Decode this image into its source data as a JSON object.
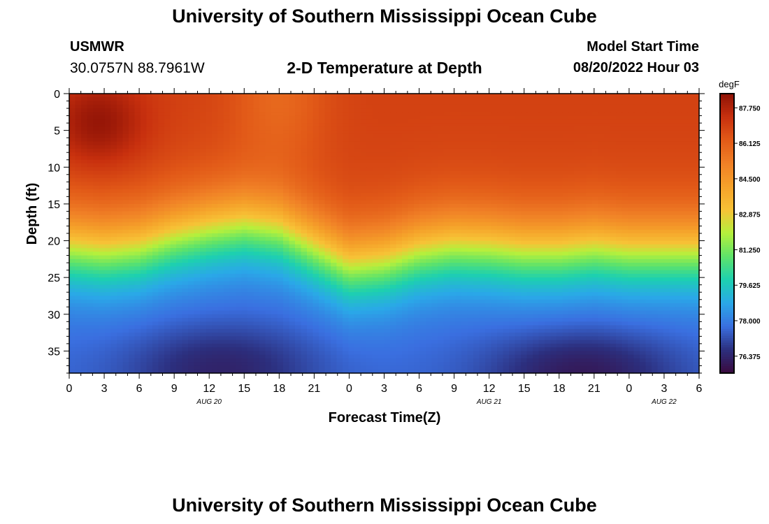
{
  "header": {
    "title": "University of Southern Mississippi Ocean Cube",
    "station": "USMWR",
    "coordinates": "30.0757N  88.7961W",
    "plot_title": "2-D Temperature at Depth",
    "model_start_label": "Model Start Time",
    "model_start_value": "08/20/2022 Hour 03"
  },
  "footer": {
    "title": "University of Southern Mississippi Ocean Cube"
  },
  "chart_data": {
    "type": "heatmap",
    "title": "2-D Temperature at Depth",
    "xlabel": "Forecast Time(Z)",
    "ylabel": "Depth (ft)",
    "x_range_hours": [
      0,
      54
    ],
    "x_ticks": [
      {
        "h": 0,
        "label": "0"
      },
      {
        "h": 3,
        "label": "3"
      },
      {
        "h": 6,
        "label": "6"
      },
      {
        "h": 9,
        "label": "9"
      },
      {
        "h": 12,
        "label": "12"
      },
      {
        "h": 15,
        "label": "15"
      },
      {
        "h": 18,
        "label": "18"
      },
      {
        "h": 21,
        "label": "21"
      },
      {
        "h": 24,
        "label": "0"
      },
      {
        "h": 27,
        "label": "3"
      },
      {
        "h": 30,
        "label": "6"
      },
      {
        "h": 33,
        "label": "9"
      },
      {
        "h": 36,
        "label": "12"
      },
      {
        "h": 39,
        "label": "15"
      },
      {
        "h": 42,
        "label": "18"
      },
      {
        "h": 45,
        "label": "21"
      },
      {
        "h": 48,
        "label": "0"
      },
      {
        "h": 51,
        "label": "3"
      },
      {
        "h": 54,
        "label": "6"
      }
    ],
    "date_labels": [
      {
        "h": 12,
        "label": "AUG 20"
      },
      {
        "h": 36,
        "label": "AUG 21"
      },
      {
        "h": 51,
        "label": "AUG 22"
      }
    ],
    "y_range_ft": [
      0,
      38
    ],
    "y_ticks": [
      0,
      5,
      10,
      15,
      20,
      25,
      30,
      35
    ],
    "units": "degF",
    "colorbar": {
      "min": 75.6,
      "max": 88.4,
      "tick_values": [
        87.75,
        86.125,
        84.5,
        82.875,
        81.25,
        79.625,
        78.0,
        76.375
      ],
      "tick_labels": [
        "87.750",
        "86.125",
        "84.500",
        "82.875",
        "81.250",
        "79.625",
        "78.000",
        "76.375"
      ],
      "colors": [
        "#3a0a3e",
        "#2c2f7e",
        "#3a6fe0",
        "#2aa8e8",
        "#1dd0b0",
        "#5ee36a",
        "#b5f03c",
        "#f7c236",
        "#f5a22a",
        "#f08026",
        "#e25a18",
        "#c8300e",
        "#8e1206"
      ]
    },
    "thermocline": {
      "time_h": [
        0,
        3,
        6,
        9,
        12,
        15,
        18,
        21,
        24,
        27,
        30,
        33,
        36,
        39,
        42,
        45,
        48,
        51,
        54
      ],
      "depth_ft": [
        21,
        21.5,
        21,
        19.5,
        18.5,
        17.8,
        18.5,
        21,
        23.5,
        23,
        21.5,
        20.8,
        21,
        21.5,
        21.5,
        21,
        21.5,
        21.5,
        21.5
      ]
    },
    "deep_cold_cores": [
      {
        "time_h": 13,
        "depth_ft": 37.5,
        "temp_f": 76.3
      },
      {
        "time_h": 44,
        "depth_ft": 38,
        "temp_f": 76.0
      }
    ],
    "surface_warm_cores": [
      {
        "time_h": 2.5,
        "depth_ft": 4,
        "temp_f": 88.3
      }
    ]
  }
}
